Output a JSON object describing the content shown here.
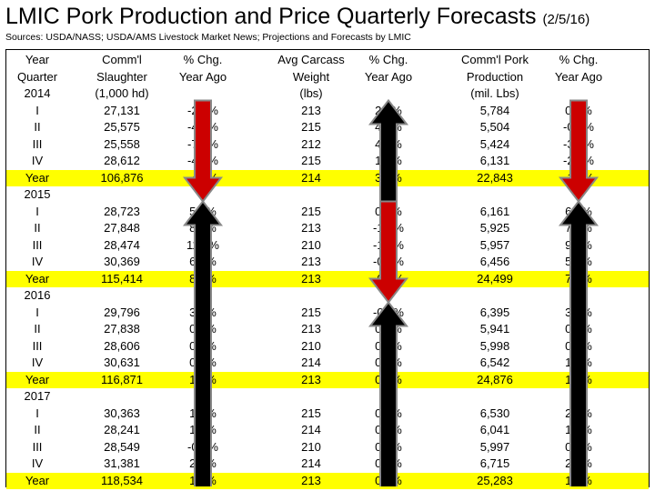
{
  "title": "LMIC Pork Production and Price Quarterly Forecasts",
  "title_date": "(2/5/16)",
  "sources": "Sources: USDA/NASS; USDA/AMS Livestock Market News; Projections and Forecasts by LMIC",
  "colors": {
    "highlight": "#ffff00",
    "down_arrow": "#cc0000",
    "up_arrow": "#000000",
    "arrow_outline": "#888888"
  },
  "arrows": [
    {
      "column": 2,
      "direction": "down",
      "color": "red",
      "from_row": 0,
      "to_row": 5
    },
    {
      "column": 4,
      "direction": "up",
      "color": "black",
      "from_row": 0,
      "to_row": 5
    },
    {
      "column": 6,
      "direction": "down",
      "color": "red",
      "from_row": 0,
      "to_row": 5
    },
    {
      "column": 2,
      "direction": "up",
      "color": "black",
      "from_row": 6,
      "to_row": 23
    },
    {
      "column": 4,
      "direction": "down",
      "color": "red",
      "from_row": 6,
      "to_row": 11
    },
    {
      "column": 4,
      "direction": "up",
      "color": "black",
      "from_row": 12,
      "to_row": 23
    },
    {
      "column": 6,
      "direction": "up",
      "color": "black",
      "from_row": 6,
      "to_row": 23
    }
  ],
  "header": [
    [
      "Year",
      "Comm'l",
      "% Chg.",
      "Avg Carcass",
      "% Chg.",
      "Comm'l Pork",
      "% Chg."
    ],
    [
      "Quarter",
      "Slaughter",
      "Year Ago",
      "Weight",
      "Year Ago",
      "Production",
      "Year Ago"
    ],
    [
      "2014",
      "(1,000 hd)",
      "",
      "(lbs)",
      "",
      "(mil. Lbs)",
      ""
    ]
  ],
  "rows": [
    {
      "c": [
        "I",
        "27,131",
        "-2.6%",
        "213",
        "2.7%",
        "5,784",
        "0.2%"
      ]
    },
    {
      "c": [
        "II",
        "25,575",
        "-4.4%",
        "215",
        "4.4%",
        "5,504",
        "-0.2%"
      ]
    },
    {
      "c": [
        "III",
        "25,558",
        "-7.6%",
        "212",
        "4.3%",
        "5,424",
        "-3.5%"
      ]
    },
    {
      "c": [
        "IV",
        "28,612",
        "-4.0%",
        "215",
        "1.7%",
        "6,131",
        "-2.3%"
      ]
    },
    {
      "c": [
        "Year",
        "106,876",
        "-4.6%",
        "214",
        "3.3%",
        "22,843",
        "-1.5%"
      ],
      "yellow": true
    },
    {
      "c": [
        "2015",
        "",
        "",
        "",
        "",
        "",
        ""
      ]
    },
    {
      "c": [
        "I",
        "28,723",
        "5.9%",
        "215",
        "0.8%",
        "6,161",
        "6.5%"
      ]
    },
    {
      "c": [
        "II",
        "27,848",
        "8.9%",
        "213",
        "-1.1%",
        "5,925",
        "7.6%"
      ]
    },
    {
      "c": [
        "III",
        "28,474",
        "11.4%",
        "210",
        "-1.3%",
        "5,957",
        "9.8%"
      ]
    },
    {
      "c": [
        "IV",
        "30,369",
        "6.1%",
        "213",
        "-0.9%",
        "6,456",
        "5.3%"
      ]
    },
    {
      "c": [
        "Year",
        "115,414",
        "8.0%",
        "213",
        "-0.6%",
        "24,499",
        "7.2%"
      ],
      "yellow": true
    },
    {
      "c": [
        "2016",
        "",
        "",
        "",
        "",
        "",
        ""
      ]
    },
    {
      "c": [
        "I",
        "29,796",
        "3.7%",
        "215",
        "-0.2%",
        "6,395",
        "3.8%"
      ]
    },
    {
      "c": [
        "II",
        "27,838",
        "0.0%",
        "213",
        "0.2%",
        "5,941",
        "0.3%"
      ]
    },
    {
      "c": [
        "III",
        "28,606",
        "0.5%",
        "210",
        "0.0%",
        "5,998",
        "0.7%"
      ]
    },
    {
      "c": [
        "IV",
        "30,631",
        "0.9%",
        "214",
        "0.4%",
        "6,542",
        "1.3%"
      ]
    },
    {
      "c": [
        "Year",
        "116,871",
        "1.3%",
        "213",
        "0.1%",
        "24,876",
        "1.5%"
      ],
      "yellow": true
    },
    {
      "c": [
        "2017",
        "",
        "",
        "",
        "",
        "",
        ""
      ]
    },
    {
      "c": [
        "I",
        "30,363",
        "1.9%",
        "215",
        "0.2%",
        "6,530",
        "2.1%"
      ]
    },
    {
      "c": [
        "II",
        "28,241",
        "1.4%",
        "214",
        "0.2%",
        "6,041",
        "1.7%"
      ]
    },
    {
      "c": [
        "III",
        "28,549",
        "-0.2%",
        "210",
        "0.2%",
        "5,997",
        "0.0%"
      ]
    },
    {
      "c": [
        "IV",
        "31,381",
        "2.4%",
        "214",
        "0.2%",
        "6,715",
        "2.6%"
      ]
    },
    {
      "c": [
        "Year",
        "118,534",
        "1.4%",
        "213",
        "0.2%",
        "25,283",
        "1.6%"
      ],
      "yellow": true
    }
  ]
}
